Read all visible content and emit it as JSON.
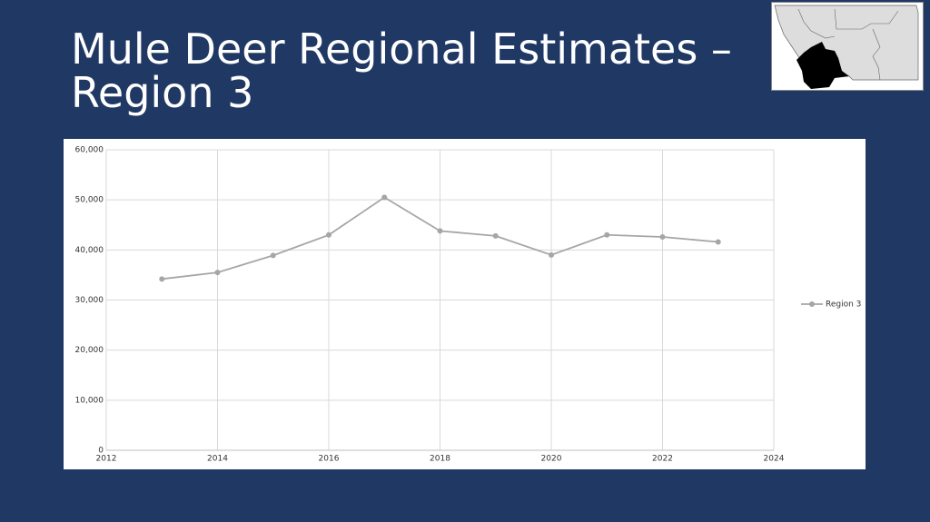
{
  "chart_data": {
    "type": "line",
    "title": "Mule Deer Regional Estimates – Region 3",
    "x": [
      2013,
      2014,
      2015,
      2016,
      2017,
      2018,
      2019,
      2020,
      2021,
      2022,
      2023
    ],
    "series": [
      {
        "name": "Region 3",
        "color": "#a6a6a6",
        "values": [
          34200,
          35500,
          38900,
          43000,
          50500,
          43800,
          42800,
          39000,
          43000,
          42600,
          41600
        ]
      }
    ],
    "xlim": [
      2012,
      2024
    ],
    "xticks": [
      2012,
      2014,
      2016,
      2018,
      2020,
      2022,
      2024
    ],
    "ylim": [
      0,
      60000
    ],
    "yticks": [
      0,
      {
        "value": 10000,
        "label": "10,000"
      },
      {
        "value": 20000,
        "label": "20,000"
      },
      {
        "value": 30000,
        "label": "30,000"
      },
      {
        "value": 40000,
        "label": "40,000"
      },
      {
        "value": 50000,
        "label": "50,000"
      },
      {
        "value": 60000,
        "label": "60,000"
      }
    ],
    "grid": true,
    "legend": "right"
  }
}
